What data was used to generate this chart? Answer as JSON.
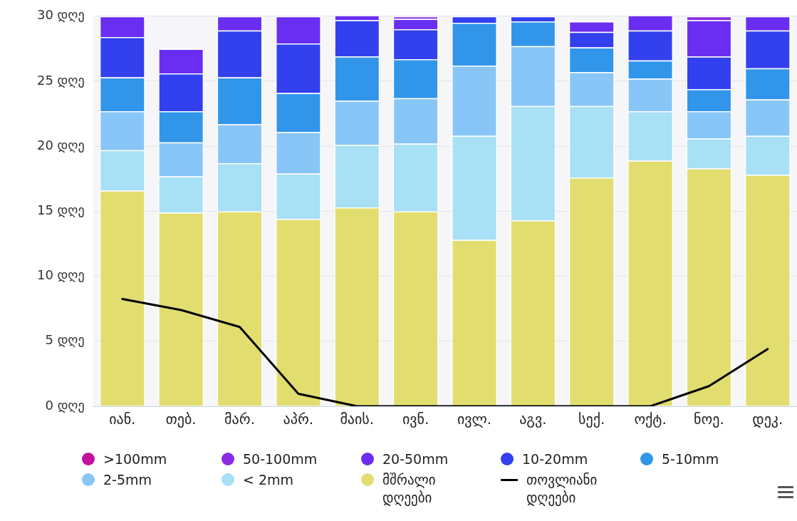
{
  "chart_data": {
    "type": "bar",
    "stacked": true,
    "categories": [
      "იან.",
      "თებ.",
      "მარ.",
      "აპრ.",
      "მაის.",
      "ივნ.",
      "ივლ.",
      "აგვ.",
      "სექ.",
      "ოქტ.",
      "ნოე.",
      "დეკ."
    ],
    "ylim": [
      0,
      30
    ],
    "yticks": [
      {
        "value": 0,
        "label": "0 დღე"
      },
      {
        "value": 5,
        "label": "5 დღე"
      },
      {
        "value": 10,
        "label": "10 დღე"
      },
      {
        "value": 15,
        "label": "15 დღე"
      },
      {
        "value": 20,
        "label": "20 დღე"
      },
      {
        "value": 25,
        "label": "25 დღე"
      },
      {
        "value": 30,
        "label": "30 დღე"
      }
    ],
    "grid": "y",
    "legend": "bottom",
    "series": [
      {
        "name": "მშრალი დღეები",
        "color": "#e2dd6f",
        "values": [
          16.6,
          14.9,
          15.0,
          14.4,
          15.3,
          15.0,
          12.8,
          14.3,
          17.6,
          18.9,
          18.3,
          17.8
        ]
      },
      {
        "name": "< 2mm",
        "color": "#a8e0f5",
        "values": [
          3.1,
          2.8,
          3.7,
          3.5,
          4.8,
          5.2,
          8.0,
          8.8,
          5.5,
          3.8,
          2.3,
          3.0
        ]
      },
      {
        "name": "2-5mm",
        "color": "#88c6f8",
        "values": [
          3.0,
          2.6,
          3.0,
          3.2,
          3.4,
          3.5,
          5.4,
          4.6,
          2.6,
          2.5,
          2.1,
          2.8
        ]
      },
      {
        "name": "5-10mm",
        "color": "#3196ea",
        "values": [
          2.6,
          2.4,
          3.6,
          3.0,
          3.4,
          3.0,
          3.3,
          1.9,
          1.9,
          1.4,
          1.7,
          2.4
        ]
      },
      {
        "name": "10-20mm",
        "color": "#3240ee",
        "values": [
          3.1,
          2.9,
          3.6,
          3.8,
          2.8,
          2.3,
          0.5,
          0.4,
          1.2,
          2.3,
          2.5,
          2.9
        ]
      },
      {
        "name": "20-50mm",
        "color": "#6a2ef2",
        "values": [
          1.6,
          1.9,
          1.1,
          2.1,
          0.4,
          0.8,
          0,
          0,
          0.8,
          1.2,
          2.8,
          1.1
        ]
      },
      {
        "name": "50-100mm",
        "color": "#8a2be2",
        "values": [
          0,
          0,
          0,
          0,
          0,
          0.2,
          0,
          0,
          0,
          0,
          0.3,
          0
        ]
      },
      {
        "name": ">100mm",
        "color": "#c0129c",
        "values": [
          0,
          0,
          0,
          0,
          0,
          0,
          0,
          0,
          0,
          0,
          0,
          0
        ]
      },
      {
        "name": "თოვლიანი დღეები",
        "type": "line",
        "color": "#000000",
        "marker": "none",
        "line_style": "solid",
        "values": [
          8.25,
          7.4,
          6.1,
          0.96,
          0,
          0,
          0,
          0,
          0,
          0,
          1.55,
          4.4
        ]
      }
    ]
  }
}
